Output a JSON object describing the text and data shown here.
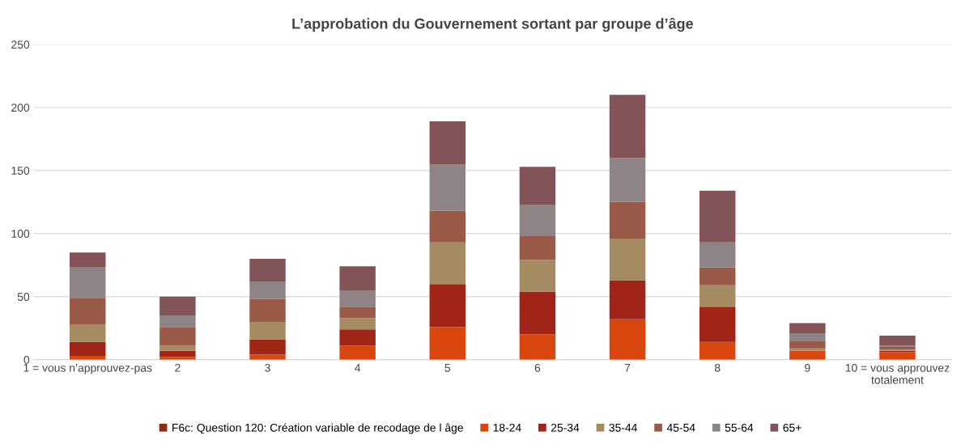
{
  "chart_data": {
    "type": "bar",
    "title": "L’approbation du Gouvernement sortant par groupe d’âge",
    "stacked": true,
    "categories": [
      "1 = vous n’approuvez-pas",
      "2",
      "3",
      "4",
      "5",
      "6",
      "7",
      "8",
      "9",
      "10 = vous approuvez totalement"
    ],
    "series": [
      {
        "name": "F6c: Question 120: Création variable de recodage de l âge",
        "color": "#8b2b14",
        "values": [
          null,
          null,
          null,
          null,
          null,
          null,
          null,
          null,
          null,
          null
        ]
      },
      {
        "name": "18-24",
        "color": "#d9460e",
        "values": [
          3,
          2,
          4,
          11,
          26,
          20,
          32,
          14,
          7,
          6
        ]
      },
      {
        "name": "25-34",
        "color": "#a02418",
        "values": [
          11,
          5,
          12,
          13,
          34,
          34,
          31,
          28,
          0,
          1
        ]
      },
      {
        "name": "35-44",
        "color": "#a58b62",
        "values": [
          14,
          4,
          14,
          9,
          33,
          25,
          33,
          17,
          2,
          1
        ]
      },
      {
        "name": "45-54",
        "color": "#9a5a48",
        "values": [
          21,
          15,
          18,
          9,
          25,
          19,
          29,
          14,
          6,
          2
        ]
      },
      {
        "name": "55-64",
        "color": "#8f8485",
        "values": [
          24,
          9,
          14,
          13,
          37,
          25,
          35,
          20,
          6,
          1
        ]
      },
      {
        "name": "65+",
        "color": "#825457",
        "values": [
          12,
          15,
          18,
          19,
          34,
          30,
          50,
          41,
          8,
          8
        ]
      }
    ],
    "ylim": [
      0,
      250
    ],
    "yticks": [
      0,
      50,
      100,
      150,
      200,
      250
    ],
    "grid": "y",
    "legend": "bottom"
  }
}
